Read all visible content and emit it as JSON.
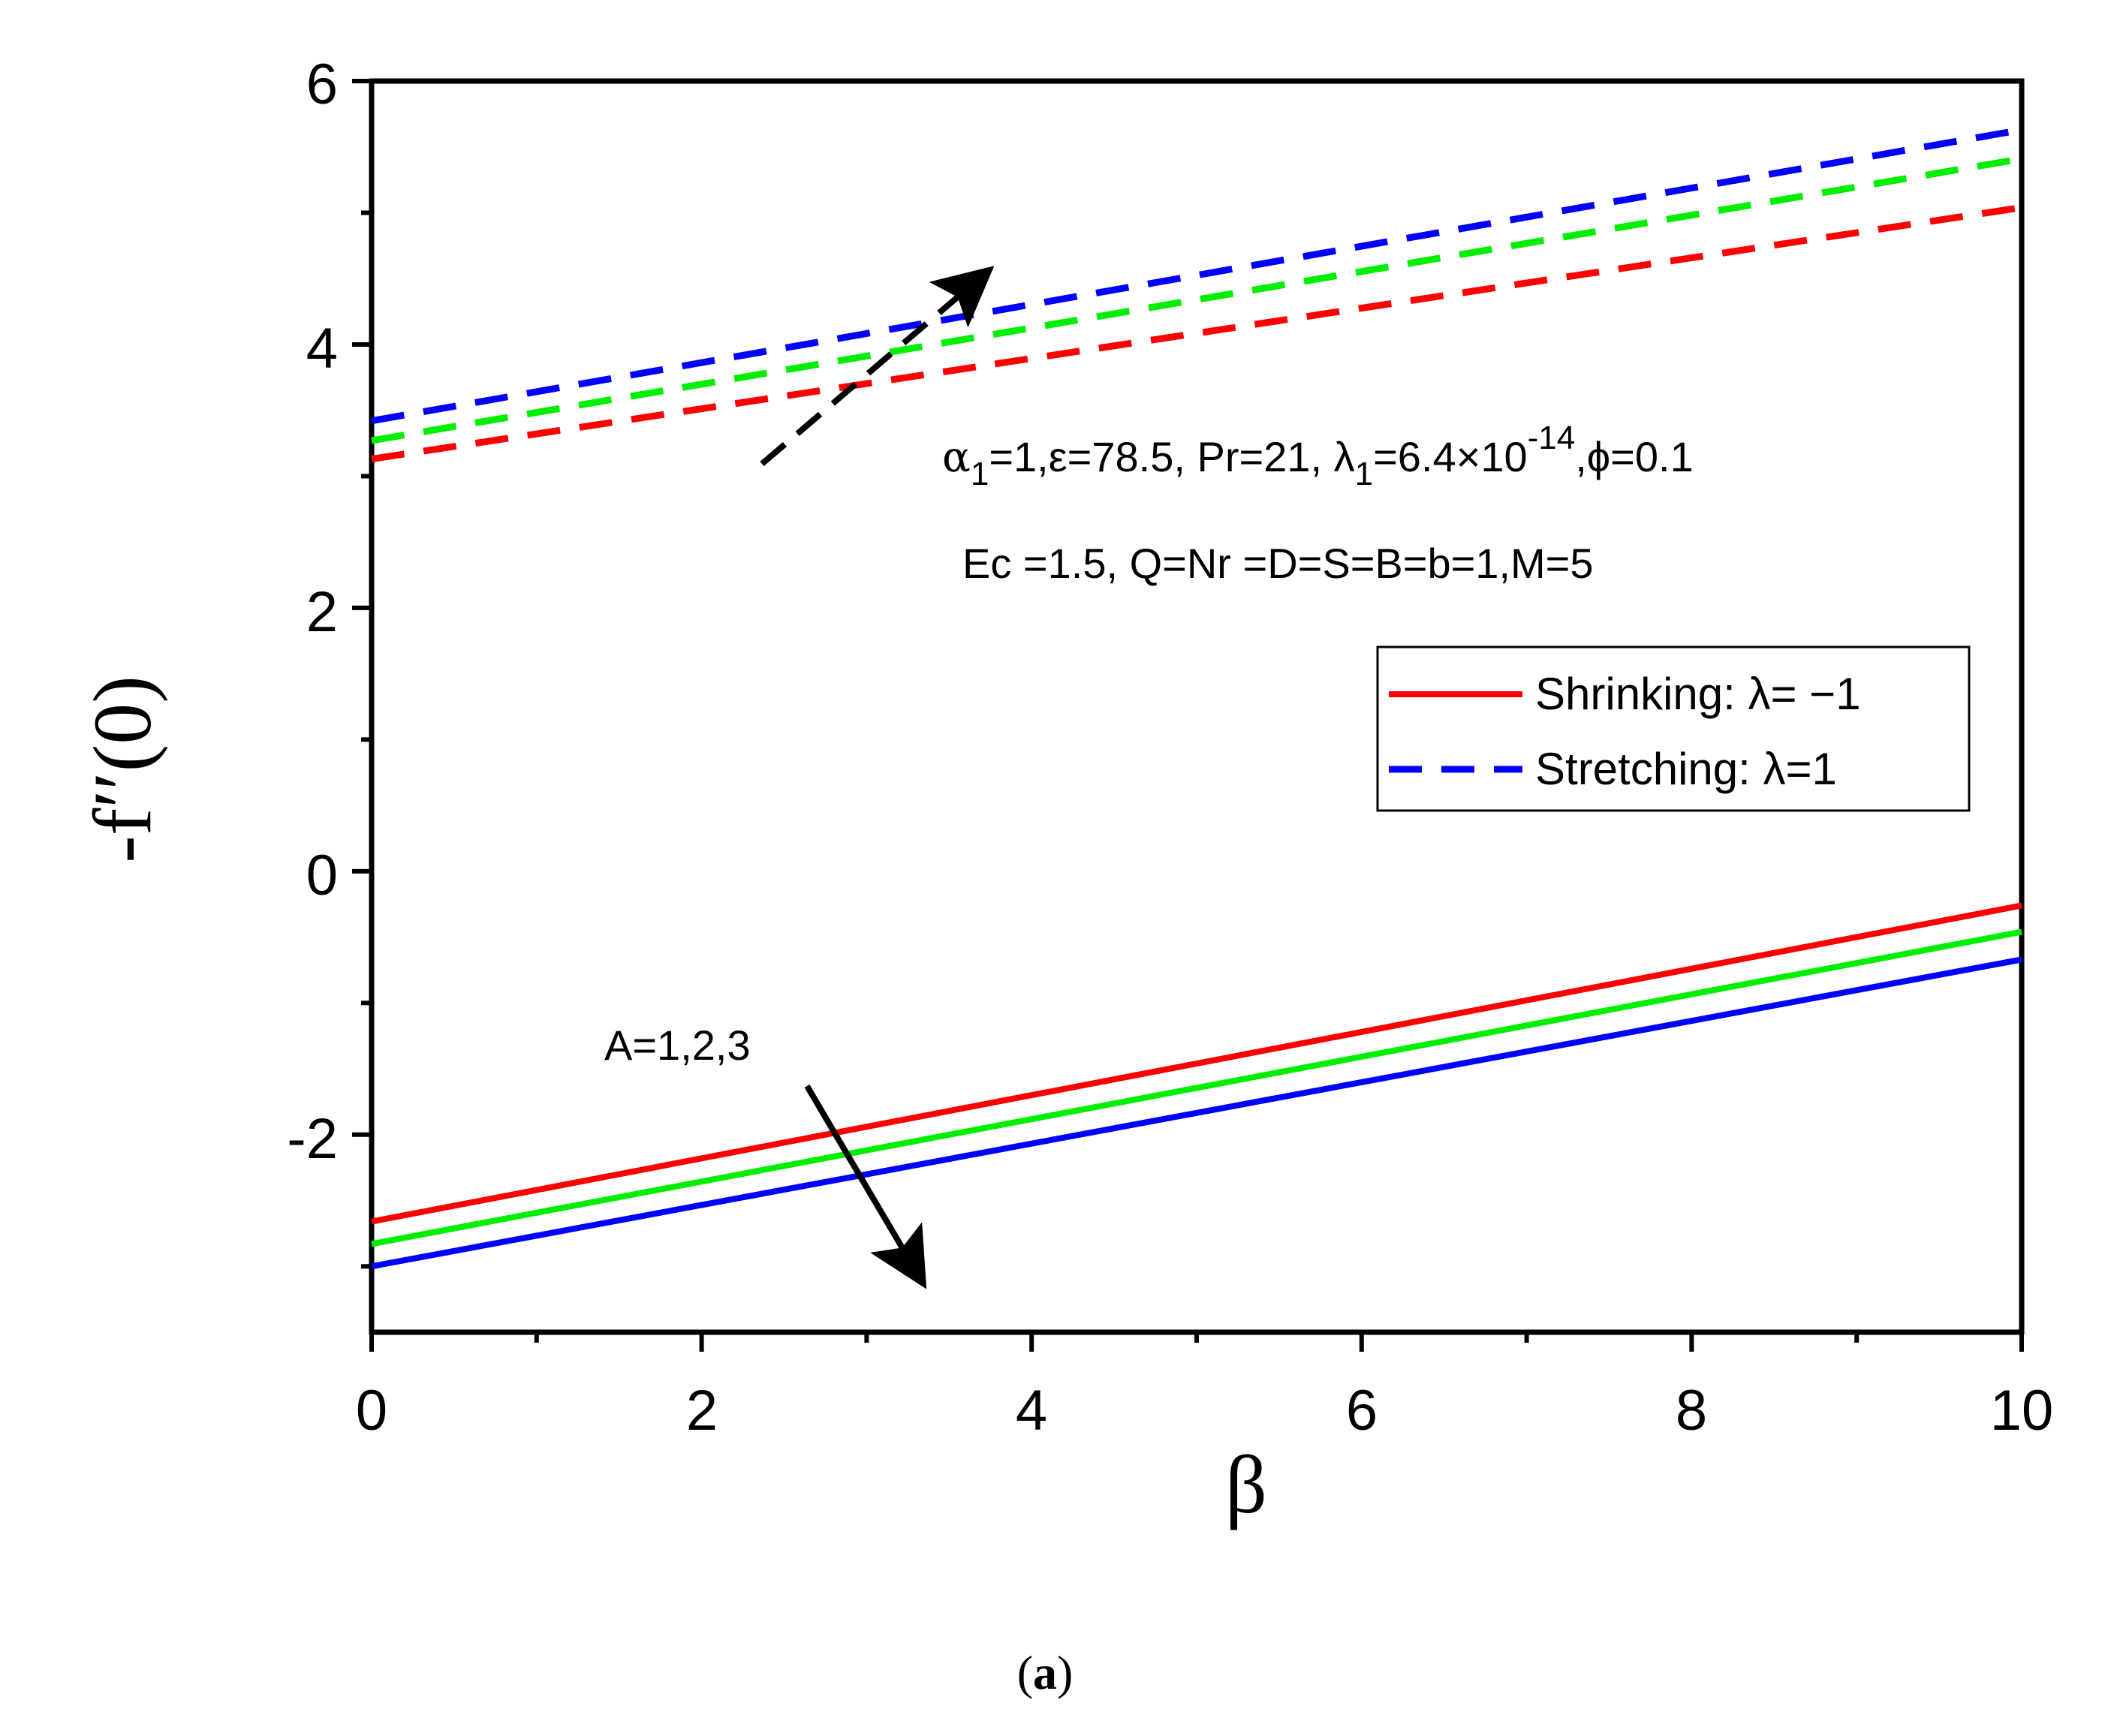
{
  "chart_data": {
    "type": "line",
    "x": [
      0,
      10
    ],
    "xlim": [
      0,
      10
    ],
    "ylim": [
      -3.5,
      6
    ],
    "xlabel": "β",
    "ylabel": "-f′′(0)",
    "xticks": [
      "0",
      "2",
      "4",
      "6",
      "8",
      "10"
    ],
    "yticks": [
      "-2",
      "0",
      "2",
      "4",
      "6"
    ],
    "series": [
      {
        "name": "Shrinking A=1",
        "case": "shrinking",
        "A": 1,
        "color": "#ff0000",
        "style": "solid",
        "values": [
          -2.66,
          -0.26
        ]
      },
      {
        "name": "Shrinking A=2",
        "case": "shrinking",
        "A": 2,
        "color": "#00ee00",
        "style": "solid",
        "values": [
          -2.83,
          -0.46
        ]
      },
      {
        "name": "Shrinking A=3",
        "case": "shrinking",
        "A": 3,
        "color": "#0000ff",
        "style": "solid",
        "values": [
          -3.0,
          -0.67
        ]
      },
      {
        "name": "Stretching A=1",
        "case": "stretching",
        "A": 1,
        "color": "#ff0000",
        "style": "dashed",
        "values": [
          3.13,
          5.04
        ]
      },
      {
        "name": "Stretching A=2",
        "case": "stretching",
        "A": 2,
        "color": "#00ee00",
        "style": "dashed",
        "values": [
          3.27,
          5.41
        ]
      },
      {
        "name": "Stretching A=3",
        "case": "stretching",
        "A": 3,
        "color": "#0000ff",
        "style": "dashed",
        "values": [
          3.42,
          5.63
        ]
      }
    ],
    "legend": [
      {
        "label": "Shrinking: λ= −1",
        "color": "#ff0000",
        "style": "solid"
      },
      {
        "label": "Stretching: λ=1",
        "color": "#0000ff",
        "style": "dashed"
      }
    ],
    "legend_position": "center-right",
    "annotations": {
      "params_line1_a": "α",
      "params_line1_a_sub": "1",
      "params_line1_b": "=1,ε=78.5, Pr=21, λ",
      "params_line1_b_sub": "1",
      "params_line1_c": "=6.4×10",
      "params_line1_c_sup": "-14",
      "params_line1_d": ",ϕ=0.1",
      "params_line2": "Ec =1.5, Q=Nr =D=S=B=b=1,M=5",
      "arrow_label": "A=1,2,3"
    },
    "caption_paren_open": "(",
    "caption_letter": "a",
    "caption_paren_close": ")"
  }
}
